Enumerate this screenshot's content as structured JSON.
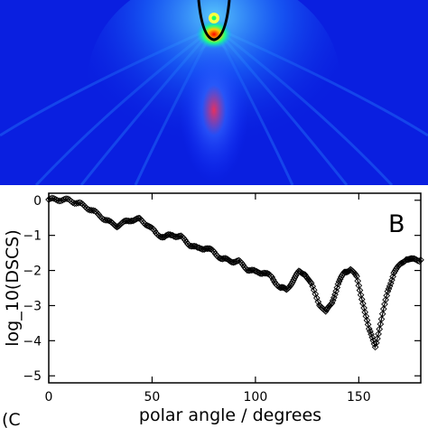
{
  "colors": {
    "field_background": "#0a1fe0",
    "hot": "#ff0000",
    "warm": "#ffff00",
    "contour": "#000000",
    "marker": "#000000"
  },
  "chart_data": [
    {
      "type": "heatmap",
      "title": "",
      "xlabel": "",
      "ylabel": "",
      "description_of_field": [],
      "colormap": "jet"
    },
    {
      "type": "scatter",
      "title": "",
      "panel_label": "B",
      "xlabel": "polar angle / degrees",
      "ylabel": "log_10(DSCS)",
      "xlim": [
        0,
        180
      ],
      "ylim": [
        -5.2,
        0.2
      ],
      "xticks": [
        0,
        50,
        100,
        150
      ],
      "yticks": [
        0,
        -1,
        -2,
        -3,
        -4,
        -5
      ],
      "grid": false,
      "marker": "diamond",
      "curve_points": [
        [
          0,
          0.02
        ],
        [
          5,
          0.02
        ],
        [
          10,
          0.0
        ],
        [
          15,
          -0.1
        ],
        [
          20,
          -0.25
        ],
        [
          25,
          -0.45
        ],
        [
          30,
          -0.65
        ],
        [
          33,
          -0.72
        ],
        [
          36,
          -0.65
        ],
        [
          40,
          -0.55
        ],
        [
          44,
          -0.55
        ],
        [
          48,
          -0.7
        ],
        [
          52,
          -0.95
        ],
        [
          56,
          -1.05
        ],
        [
          60,
          -0.98
        ],
        [
          64,
          -1.05
        ],
        [
          68,
          -1.25
        ],
        [
          72,
          -1.38
        ],
        [
          76,
          -1.35
        ],
        [
          80,
          -1.48
        ],
        [
          84,
          -1.68
        ],
        [
          88,
          -1.72
        ],
        [
          92,
          -1.75
        ],
        [
          96,
          -1.95
        ],
        [
          100,
          -2.05
        ],
        [
          104,
          -2.05
        ],
        [
          108,
          -2.2
        ],
        [
          112,
          -2.5
        ],
        [
          115,
          -2.55
        ],
        [
          118,
          -2.3
        ],
        [
          121,
          -2.05
        ],
        [
          124,
          -2.08
        ],
        [
          127,
          -2.4
        ],
        [
          131,
          -2.95
        ],
        [
          134,
          -3.2
        ],
        [
          137,
          -2.9
        ],
        [
          140,
          -2.4
        ],
        [
          143,
          -2.05
        ],
        [
          146,
          -1.95
        ],
        [
          149,
          -2.2
        ],
        [
          152,
          -2.9
        ],
        [
          155,
          -3.7
        ],
        [
          158,
          -4.15
        ],
        [
          161,
          -3.4
        ],
        [
          164,
          -2.6
        ],
        [
          167,
          -2.05
        ],
        [
          170,
          -1.85
        ],
        [
          173,
          -1.65
        ],
        [
          176,
          -1.7
        ],
        [
          180,
          -1.7
        ]
      ]
    }
  ],
  "caption_fragment": "(C"
}
